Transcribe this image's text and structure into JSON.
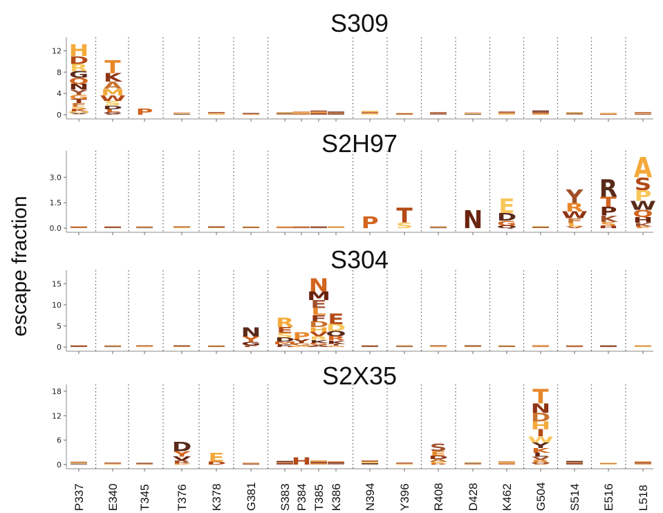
{
  "chart_data": {
    "type": "logo",
    "ylabel": "escape fraction",
    "sites": [
      "P337",
      "E340",
      "T345",
      "T376",
      "K378",
      "G381",
      "S383",
      "P384",
      "T385",
      "K386",
      "N394",
      "Y396",
      "R408",
      "D428",
      "K462",
      "G504",
      "S514",
      "E516",
      "L518"
    ],
    "separator_after": [
      0,
      1,
      2,
      3,
      4,
      5,
      9,
      10,
      11,
      12,
      13,
      14,
      15,
      16,
      17
    ],
    "panels": [
      {
        "title": "S309",
        "ylim": [
          0,
          14
        ],
        "yticks": [
          0,
          4,
          8,
          12
        ],
        "letters": [
          "HDRGQNYGTFSKMVA",
          "TKAMWSDLGE",
          "P",
          "",
          "",
          "",
          "",
          "",
          "",
          "",
          "",
          "",
          "",
          "",
          "",
          "",
          "",
          "",
          ""
        ],
        "values": [
          13.2,
          10.2,
          1.2,
          0.4,
          0.5,
          0.2,
          0.5,
          0.6,
          0.8,
          0.6,
          0.7,
          0.3,
          0.5,
          0.4,
          0.6,
          0.8,
          0.5,
          0.3,
          0.5
        ]
      },
      {
        "title": "S2H97",
        "ylim": [
          0,
          4.4
        ],
        "yticks_labels": [
          "0.0",
          "1.5",
          "3.0"
        ],
        "yticks": [
          0,
          1.5,
          3.0
        ],
        "letters": [
          "",
          "",
          "",
          "",
          "",
          "",
          "",
          "",
          "",
          "",
          "P",
          "TS",
          "",
          "N",
          "EDGQ",
          "",
          "YRWFLV",
          "RTPKSH",
          "ASPWQHKE"
        ],
        "values": [
          0.1,
          0.05,
          0.05,
          0.05,
          0.05,
          0.05,
          0.05,
          0.05,
          0.08,
          0.05,
          0.7,
          1.2,
          0.05,
          1.05,
          1.75,
          0.12,
          2.3,
          2.9,
          4.2
        ]
      },
      {
        "title": "S304",
        "ylim": [
          0,
          17.5
        ],
        "yticks": [
          0,
          5,
          10,
          15
        ],
        "letters": [
          "",
          "",
          "",
          "",
          "",
          "NYGF",
          "RESDMKH",
          "PYGW",
          "NMELFDHVRKGAW",
          "EDQRKTG",
          "",
          "",
          "",
          "",
          "",
          "",
          "",
          "",
          ""
        ],
        "values": [
          0.3,
          0.3,
          0.2,
          0.3,
          0.3,
          4.7,
          6.9,
          3.5,
          16.2,
          7.9,
          0.4,
          0.3,
          0.3,
          0.3,
          0.4,
          0.5,
          0.3,
          0.2,
          0.3
        ]
      },
      {
        "title": "S2X35",
        "ylim": [
          0,
          19
        ],
        "yticks": [
          0,
          6,
          12,
          18
        ],
        "letters": [
          "",
          "",
          "",
          "DYVRK",
          "ED",
          "",
          "",
          "H",
          "",
          "",
          "",
          "",
          "SEDAKR",
          "",
          "",
          "TNDHIWYKLVRQE",
          "",
          "",
          ""
        ],
        "values": [
          0.7,
          0.5,
          0.3,
          5.6,
          2.8,
          0.3,
          0.9,
          1.8,
          1.0,
          0.8,
          1.0,
          0.5,
          5.2,
          0.6,
          0.8,
          18.5,
          0.9,
          0.3,
          0.8
        ]
      }
    ]
  },
  "colors": {
    "palette": [
      "#f4a93a",
      "#e8872a",
      "#d2651f",
      "#b34a17",
      "#8f3413",
      "#6b2410",
      "#f8c75a",
      "#c9732e",
      "#a0502a",
      "#5a2a1a"
    ],
    "ink": "#111111"
  }
}
